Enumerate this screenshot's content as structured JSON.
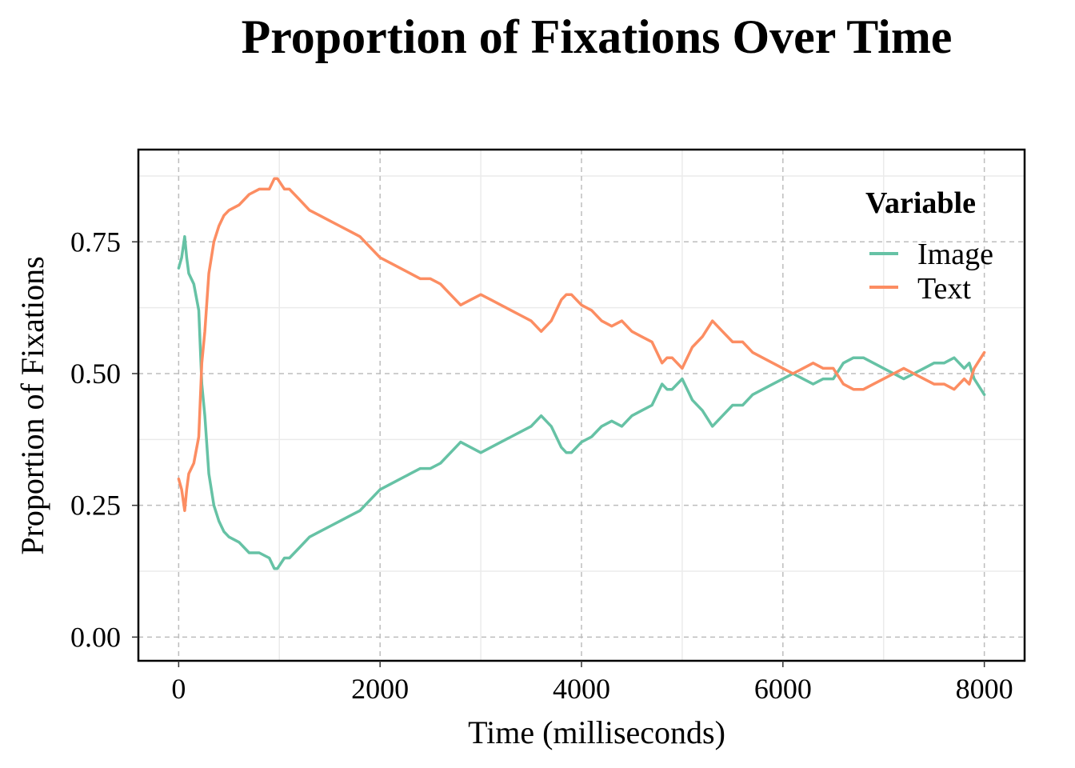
{
  "chart_data": {
    "type": "line",
    "title": "Proportion of Fixations Over Time",
    "xlabel": "Time (milliseconds)",
    "ylabel": "Proportion of Fixations",
    "xlim": [
      -400,
      8400
    ],
    "ylim": [
      -0.045,
      0.925
    ],
    "x_ticks": [
      0,
      2000,
      4000,
      6000,
      8000
    ],
    "x_tick_labels": [
      "0",
      "2000",
      "4000",
      "6000",
      "8000"
    ],
    "y_ticks": [
      0.0,
      0.25,
      0.5,
      0.75
    ],
    "y_tick_labels": [
      "0.00",
      "0.25",
      "0.50",
      "0.75"
    ],
    "grid": true,
    "legend": {
      "title": "Variable",
      "position": "top-right"
    },
    "x": [
      0,
      30,
      60,
      80,
      100,
      150,
      200,
      230,
      260,
      300,
      350,
      400,
      450,
      500,
      600,
      700,
      800,
      900,
      950,
      980,
      1050,
      1100,
      1200,
      1300,
      1400,
      1500,
      1600,
      1700,
      1800,
      1900,
      2000,
      2100,
      2200,
      2300,
      2400,
      2500,
      2600,
      2700,
      2800,
      2900,
      3000,
      3100,
      3200,
      3300,
      3400,
      3500,
      3600,
      3700,
      3800,
      3850,
      3900,
      4000,
      4100,
      4200,
      4300,
      4400,
      4500,
      4600,
      4700,
      4800,
      4850,
      4900,
      5000,
      5100,
      5200,
      5300,
      5400,
      5500,
      5600,
      5700,
      5800,
      5900,
      6000,
      6100,
      6200,
      6300,
      6400,
      6500,
      6600,
      6700,
      6800,
      6900,
      7000,
      7100,
      7200,
      7300,
      7400,
      7500,
      7600,
      7700,
      7800,
      7850,
      7900,
      8000
    ],
    "series": [
      {
        "name": "Image",
        "color": "#66C2A5",
        "values": [
          0.7,
          0.72,
          0.76,
          0.72,
          0.69,
          0.67,
          0.62,
          0.48,
          0.42,
          0.31,
          0.25,
          0.22,
          0.2,
          0.19,
          0.18,
          0.16,
          0.16,
          0.15,
          0.13,
          0.13,
          0.15,
          0.15,
          0.17,
          0.19,
          0.2,
          0.21,
          0.22,
          0.23,
          0.24,
          0.26,
          0.28,
          0.29,
          0.3,
          0.31,
          0.32,
          0.32,
          0.33,
          0.35,
          0.37,
          0.36,
          0.35,
          0.36,
          0.37,
          0.38,
          0.39,
          0.4,
          0.42,
          0.4,
          0.36,
          0.35,
          0.35,
          0.37,
          0.38,
          0.4,
          0.41,
          0.4,
          0.42,
          0.43,
          0.44,
          0.48,
          0.47,
          0.47,
          0.49,
          0.45,
          0.43,
          0.4,
          0.42,
          0.44,
          0.44,
          0.46,
          0.47,
          0.48,
          0.49,
          0.5,
          0.49,
          0.48,
          0.49,
          0.49,
          0.52,
          0.53,
          0.53,
          0.52,
          0.51,
          0.5,
          0.49,
          0.5,
          0.51,
          0.52,
          0.52,
          0.53,
          0.51,
          0.52,
          0.49,
          0.46
        ]
      },
      {
        "name": "Text",
        "color": "#FC8D62",
        "values": [
          0.3,
          0.28,
          0.24,
          0.28,
          0.31,
          0.33,
          0.38,
          0.52,
          0.58,
          0.69,
          0.75,
          0.78,
          0.8,
          0.81,
          0.82,
          0.84,
          0.85,
          0.85,
          0.87,
          0.87,
          0.85,
          0.85,
          0.83,
          0.81,
          0.8,
          0.79,
          0.78,
          0.77,
          0.76,
          0.74,
          0.72,
          0.71,
          0.7,
          0.69,
          0.68,
          0.68,
          0.67,
          0.65,
          0.63,
          0.64,
          0.65,
          0.64,
          0.63,
          0.62,
          0.61,
          0.6,
          0.58,
          0.6,
          0.64,
          0.65,
          0.65,
          0.63,
          0.62,
          0.6,
          0.59,
          0.6,
          0.58,
          0.57,
          0.56,
          0.52,
          0.53,
          0.53,
          0.51,
          0.55,
          0.57,
          0.6,
          0.58,
          0.56,
          0.56,
          0.54,
          0.53,
          0.52,
          0.51,
          0.5,
          0.51,
          0.52,
          0.51,
          0.51,
          0.48,
          0.47,
          0.47,
          0.48,
          0.49,
          0.5,
          0.51,
          0.5,
          0.49,
          0.48,
          0.48,
          0.47,
          0.49,
          0.48,
          0.51,
          0.54
        ]
      }
    ]
  }
}
